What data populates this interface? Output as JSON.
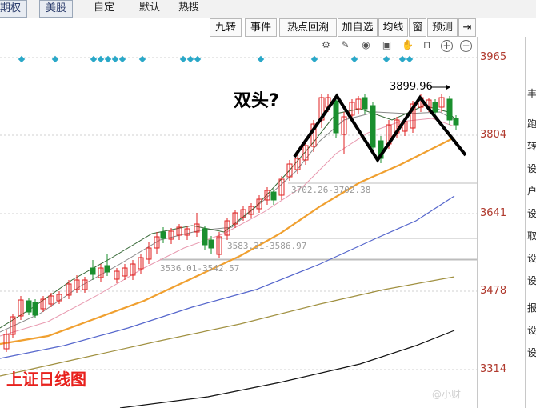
{
  "tabs": [
    {
      "label": "期权",
      "boxed": true
    },
    {
      "label": "美股",
      "boxed": true
    },
    {
      "label": "自定",
      "boxed": false
    },
    {
      "label": "默认",
      "boxed": false
    },
    {
      "label": "热搜",
      "boxed": false
    }
  ],
  "toolbar": [
    "九转",
    "事件",
    "热点回溯",
    "加自选",
    "均线",
    "窗",
    "预测",
    "⇥"
  ],
  "icons": [
    "gear-icon",
    "pencil-icon",
    "eye-icon",
    "briefcase-icon",
    "hand-icon",
    "lock-icon",
    "zoom-in-icon",
    "zoom-out-icon"
  ],
  "chart": {
    "title": "上证日线图",
    "annotation": "双头?",
    "high_label": "3899.96",
    "price_axis": [
      "3965",
      "3804",
      "3641",
      "3478",
      "3314"
    ],
    "gap_labels": [
      "3702.26-3702.38",
      "3583.31-3586.97",
      "3536.01-3542.57"
    ],
    "colors": {
      "up": "#e02020",
      "down": "#1a8f2e",
      "ma_orange": "#f0a030",
      "ma_blue": "#5566cc",
      "ma_olive": "#a09040",
      "ma_black": "#111111"
    }
  },
  "right_panel_chars": [
    "丰",
    "跑",
    "转",
    "设",
    "户",
    "设",
    "取",
    "设",
    "设",
    "报",
    "设",
    "设"
  ],
  "watermark": "@小财"
}
